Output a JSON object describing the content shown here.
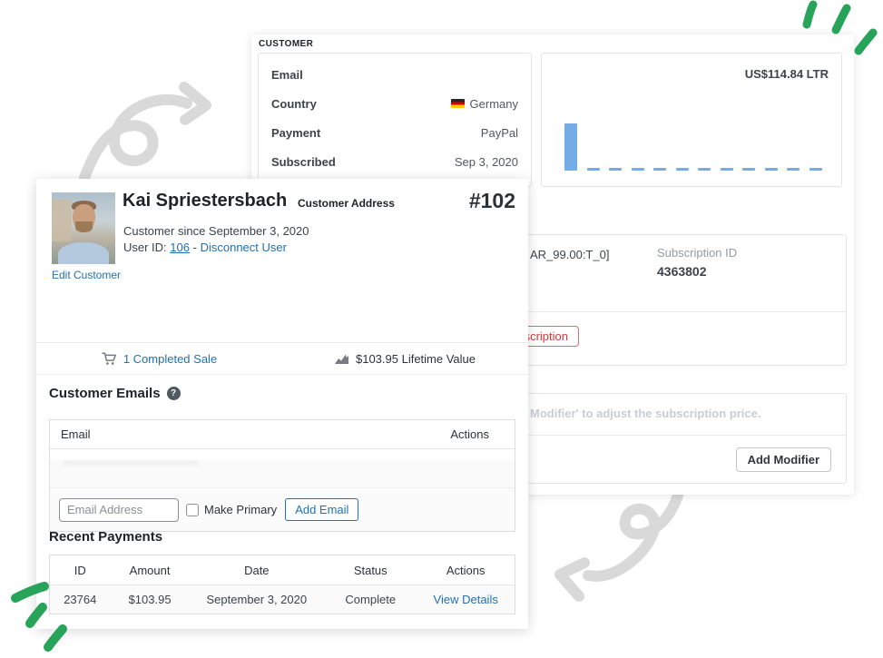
{
  "colors": {
    "link_blue": "#2271b1",
    "danger_red": "#d63638",
    "decor_green": "#27a35a",
    "decor_gray": "#d9d9d9",
    "chart_blue": "#74ade5"
  },
  "back_panel": {
    "section_label": "CUSTOMER",
    "details_rows": [
      {
        "label": "Email",
        "value": ""
      },
      {
        "label": "Country",
        "value": "Germany",
        "icon": "germany-flag-icon"
      },
      {
        "label": "Payment",
        "value": "PayPal"
      },
      {
        "label": "Subscribed",
        "value": "Sep 3, 2020"
      }
    ],
    "ltv_chart_label": "US$114.84 LTR",
    "subscription": {
      "plan_fragment": "AR_99.00:T_0]",
      "id_label": "Subscription ID",
      "id_value": "4363802",
      "cancel_button_fragment": "scription"
    },
    "modifier": {
      "hint_fragment": "Modifier' to adjust the subscription price.",
      "add_button": "Add Modifier"
    }
  },
  "front_panel": {
    "header": {
      "name": "Kai Spriestersbach",
      "since": "Customer since September 3, 2020",
      "user_id_label": "User ID:",
      "user_id_link": "106",
      "separator": "-",
      "disconnect_link": "Disconnect User",
      "edit_link": "Edit Customer",
      "address_label": "Customer Address",
      "customer_number": "#102"
    },
    "stats": {
      "completed_sales": "1 Completed Sale",
      "lifetime_value": "$103.95 Lifetime Value",
      "sales_icon": "cart-icon",
      "ltv_icon": "chart-icon"
    },
    "emails": {
      "title": "Customer Emails",
      "help_glyph": "?",
      "columns": [
        "Email",
        "Actions"
      ],
      "row_email_redacted": true,
      "input_placeholder": "Email Address",
      "checkbox_label": "Make Primary",
      "add_button": "Add Email"
    },
    "payments": {
      "title": "Recent Payments",
      "columns": [
        "ID",
        "Amount",
        "Date",
        "Status",
        "Actions"
      ],
      "rows": [
        [
          "23764",
          "$103.95",
          "September 3, 2020",
          "Complete",
          "View Details"
        ]
      ]
    }
  },
  "chart_data": {
    "type": "bar",
    "title": "US$114.84 LTR",
    "x": [
      1,
      2,
      3,
      4,
      5,
      6,
      7,
      8,
      9,
      10,
      11,
      12
    ],
    "values": [
      114.84,
      0,
      0,
      0,
      0,
      0,
      0,
      0,
      0,
      0,
      0,
      0
    ],
    "ylim": [
      0,
      115
    ],
    "grid": false,
    "axes_labels_visible": false,
    "legend": "none",
    "bar_color": "#74ade5"
  }
}
